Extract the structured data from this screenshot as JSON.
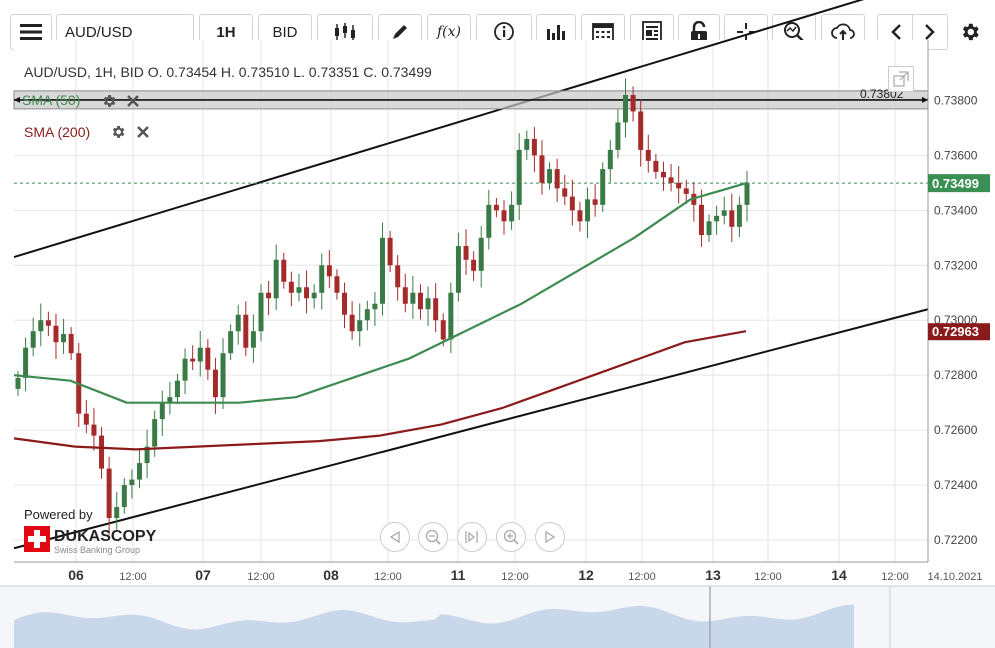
{
  "toolbar": {
    "symbol": "AUD/USD",
    "timeframe": "1H",
    "price_side": "BID"
  },
  "legend": {
    "ohlc": "AUD/USD, 1H, BID   O. 0.73454  H. 0.73510  L. 0.73351  C. 0.73499",
    "sma50_label": "SMA (50)",
    "sma200_label": "SMA (200)",
    "hline_value": "0.73802",
    "last_price": "0.73499",
    "sma200_value": "0.72963"
  },
  "branding": {
    "powered_by": "Powered by",
    "name": "DUKASCOPY",
    "tagline": "Swiss Banking Group"
  },
  "colors": {
    "up": "#3a7a46",
    "down": "#a52a2a",
    "sma50": "#3d8b50",
    "sma200": "#8b1a1a",
    "last_price_bg": "#3a8f52",
    "sma200_bg": "#8b1a1a"
  },
  "chart_data": {
    "type": "candlestick",
    "symbol": "AUD/USD",
    "interval": "1H",
    "ylim": [
      0.7212,
      0.7402
    ],
    "y_ticks": [
      "0.73800",
      "0.73600",
      "0.73400",
      "0.73200",
      "0.73000",
      "0.72800",
      "0.72600",
      "0.72400",
      "0.72200"
    ],
    "x_ticks": [
      "06",
      "12:00",
      "07",
      "12:00",
      "08",
      "12:00",
      "11",
      "12:00",
      "12",
      "12:00",
      "13",
      "12:00",
      "14",
      "12:00",
      "14.10.2021"
    ],
    "closes": [
      0.7279,
      0.729,
      0.7296,
      0.73,
      0.7298,
      0.7292,
      0.7295,
      0.7288,
      0.7266,
      0.7262,
      0.7258,
      0.7246,
      0.7228,
      0.7232,
      0.724,
      0.7242,
      0.7248,
      0.7254,
      0.7264,
      0.727,
      0.7272,
      0.7278,
      0.7286,
      0.7285,
      0.729,
      0.7282,
      0.7272,
      0.7288,
      0.7296,
      0.7302,
      0.729,
      0.7296,
      0.731,
      0.7308,
      0.7322,
      0.7314,
      0.731,
      0.7312,
      0.7308,
      0.731,
      0.732,
      0.7316,
      0.731,
      0.7302,
      0.7296,
      0.73,
      0.7304,
      0.7306,
      0.733,
      0.732,
      0.7312,
      0.7306,
      0.731,
      0.7304,
      0.7308,
      0.73,
      0.7293,
      0.731,
      0.7327,
      0.7322,
      0.7318,
      0.733,
      0.7342,
      0.734,
      0.7336,
      0.7342,
      0.7362,
      0.7366,
      0.736,
      0.735,
      0.7355,
      0.7348,
      0.7345,
      0.734,
      0.7336,
      0.7344,
      0.7342,
      0.7355,
      0.7362,
      0.7372,
      0.7382,
      0.7376,
      0.7362,
      0.7358,
      0.7354,
      0.7352,
      0.735,
      0.7348,
      0.7346,
      0.7342,
      0.7331,
      0.7336,
      0.7338,
      0.734,
      0.7334,
      0.7342,
      0.735
    ],
    "sma50": [
      0.728,
      0.7278,
      0.727,
      0.727,
      0.727,
      0.7272,
      0.7279,
      0.7286,
      0.7296,
      0.7306,
      0.7318,
      0.733,
      0.7344,
      0.735
    ],
    "sma200": [
      0.7257,
      0.7254,
      0.7253,
      0.7254,
      0.7255,
      0.7256,
      0.7258,
      0.7262,
      0.7268,
      0.7276,
      0.7284,
      0.7292,
      0.7296
    ],
    "trendlines": [
      {
        "y_start": 0.7323,
        "y_end": 0.7424
      },
      {
        "y_start": 0.7217,
        "y_end": 0.7304
      }
    ],
    "horizontal_line": 0.73802,
    "last_price": 0.73499,
    "sma50_name": "SMA (50)",
    "sma200_name": "SMA (200)"
  }
}
